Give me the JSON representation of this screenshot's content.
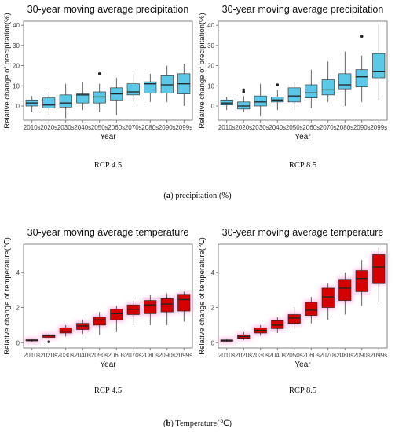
{
  "captions": {
    "a_letter": "a",
    "a_text": "precipitation (%)",
    "b_letter": "b",
    "b_text": "Temperature(℃)"
  },
  "colors": {
    "precip_fill": "#5bc8e8",
    "temp_fill": "#d40000",
    "temp_halo": "#ff9ad8",
    "line": "#222222",
    "frame": "#666666"
  },
  "chart_data": [
    {
      "type": "boxplot",
      "title": "30-year moving average precipitation",
      "subtitle": "RCP 4.5",
      "xlabel": "Year",
      "ylabel": "Relative change of precipitation(%)",
      "categories": [
        "2010s",
        "2020s",
        "2030s",
        "2040s",
        "2050s",
        "2060s",
        "2070s",
        "2080s",
        "2090s",
        "2099s"
      ],
      "ylim": [
        -7,
        42
      ],
      "yticks": [
        0,
        10,
        20,
        30,
        40
      ],
      "grid": false,
      "fill": "precip",
      "boxes": [
        {
          "min": -3,
          "q1": 0,
          "median": 1.5,
          "q3": 3,
          "max": 5,
          "outliers": []
        },
        {
          "min": -4.5,
          "q1": -1,
          "median": 0.5,
          "q3": 4,
          "max": 7,
          "outliers": []
        },
        {
          "min": -6,
          "q1": -0.5,
          "median": 1.5,
          "q3": 5.5,
          "max": 11,
          "outliers": []
        },
        {
          "min": -2,
          "q1": 1.5,
          "median": 5.5,
          "q3": 6,
          "max": 12,
          "outliers": []
        },
        {
          "min": -3,
          "q1": 1.5,
          "median": 4.5,
          "q3": 7,
          "max": 11,
          "outliers": [
            16
          ]
        },
        {
          "min": -4.5,
          "q1": 3,
          "median": 6,
          "q3": 9,
          "max": 14,
          "outliers": []
        },
        {
          "min": 2,
          "q1": 5.5,
          "median": 7,
          "q3": 11,
          "max": 16,
          "outliers": []
        },
        {
          "min": 2,
          "q1": 6.5,
          "median": 11,
          "q3": 12,
          "max": 16,
          "outliers": []
        },
        {
          "min": 2,
          "q1": 6.5,
          "median": 10.5,
          "q3": 15,
          "max": 20,
          "outliers": []
        },
        {
          "min": 0,
          "q1": 6,
          "median": 11,
          "q3": 16,
          "max": 21,
          "outliers": []
        }
      ]
    },
    {
      "type": "boxplot",
      "title": "30-year moving average precipitation",
      "subtitle": "RCP 8.5",
      "xlabel": "Year",
      "ylabel": "Relative change of precipitation(%)",
      "categories": [
        "2010s",
        "2020s",
        "2030s",
        "2040s",
        "2050s",
        "2060s",
        "2070s",
        "2080s",
        "2090s",
        "2099s"
      ],
      "ylim": [
        -7,
        42
      ],
      "yticks": [
        0,
        10,
        20,
        30,
        40
      ],
      "grid": false,
      "fill": "precip",
      "boxes": [
        {
          "min": -2,
          "q1": 0.5,
          "median": 1.5,
          "q3": 3,
          "max": 4.5,
          "outliers": []
        },
        {
          "min": -3,
          "q1": -1.5,
          "median": 0,
          "q3": 2,
          "max": 5,
          "outliers": [
            7,
            8
          ]
        },
        {
          "min": -5,
          "q1": 0,
          "median": 2,
          "q3": 5,
          "max": 11,
          "outliers": []
        },
        {
          "min": -2,
          "q1": 2,
          "median": 3,
          "q3": 4.5,
          "max": 8,
          "outliers": [
            10.5
          ]
        },
        {
          "min": -2,
          "q1": 2,
          "median": 5,
          "q3": 9,
          "max": 12,
          "outliers": []
        },
        {
          "min": -1,
          "q1": 4,
          "median": 6.5,
          "q3": 10.5,
          "max": 18,
          "outliers": []
        },
        {
          "min": 2,
          "q1": 5.5,
          "median": 8,
          "q3": 13,
          "max": 22,
          "outliers": []
        },
        {
          "min": 0,
          "q1": 8.5,
          "median": 10.5,
          "q3": 16,
          "max": 27,
          "outliers": []
        },
        {
          "min": 2,
          "q1": 9.5,
          "median": 14.5,
          "q3": 18,
          "max": 25,
          "outliers": [
            34.5
          ]
        },
        {
          "min": 3,
          "q1": 14,
          "median": 17,
          "q3": 26,
          "max": 41,
          "outliers": []
        }
      ]
    },
    {
      "type": "boxplot",
      "title": "30-year moving average temperature",
      "subtitle": "RCP 4.5",
      "xlabel": "Year",
      "ylabel": "Relative change of temperature(℃)",
      "categories": [
        "2010s",
        "2020s",
        "2030s",
        "2040s",
        "2050s",
        "2060s",
        "2070s",
        "2080s",
        "2090s",
        "2099s"
      ],
      "ylim": [
        -0.3,
        5.6
      ],
      "yticks": [
        0,
        2,
        4
      ],
      "grid": false,
      "fill": "temp",
      "boxes": [
        {
          "min": 0.05,
          "q1": 0.1,
          "median": 0.13,
          "q3": 0.17,
          "max": 0.2,
          "outliers": []
        },
        {
          "min": 0.2,
          "q1": 0.3,
          "median": 0.4,
          "q3": 0.45,
          "max": 0.55,
          "outliers": [
            0.05
          ]
        },
        {
          "min": 0.35,
          "q1": 0.55,
          "median": 0.65,
          "q3": 0.85,
          "max": 1.0,
          "outliers": []
        },
        {
          "min": 0.5,
          "q1": 0.75,
          "median": 0.95,
          "q3": 1.1,
          "max": 1.3,
          "outliers": []
        },
        {
          "min": 0.45,
          "q1": 1.0,
          "median": 1.3,
          "q3": 1.45,
          "max": 1.75,
          "outliers": []
        },
        {
          "min": 0.6,
          "q1": 1.3,
          "median": 1.65,
          "q3": 1.9,
          "max": 2.1,
          "outliers": []
        },
        {
          "min": 1.0,
          "q1": 1.6,
          "median": 1.9,
          "q3": 2.15,
          "max": 2.4,
          "outliers": []
        },
        {
          "min": 1.0,
          "q1": 1.65,
          "median": 2.15,
          "q3": 2.4,
          "max": 2.7,
          "outliers": []
        },
        {
          "min": 1.0,
          "q1": 1.75,
          "median": 2.2,
          "q3": 2.5,
          "max": 2.8,
          "outliers": []
        },
        {
          "min": 1.2,
          "q1": 1.8,
          "median": 2.45,
          "q3": 2.75,
          "max": 2.9,
          "outliers": []
        }
      ]
    },
    {
      "type": "boxplot",
      "title": "30-year moving average temperature",
      "subtitle": "RCP 8.5",
      "xlabel": "Year",
      "ylabel": "Relative change of temperature(℃)",
      "categories": [
        "2010s",
        "2020s",
        "2030s",
        "2040s",
        "2050s",
        "2060s",
        "2070s",
        "2080s",
        "2090s",
        "2099s"
      ],
      "ylim": [
        -0.3,
        5.6
      ],
      "yticks": [
        0,
        2,
        4
      ],
      "grid": false,
      "fill": "temp",
      "boxes": [
        {
          "min": 0.05,
          "q1": 0.08,
          "median": 0.12,
          "q3": 0.16,
          "max": 0.2,
          "outliers": []
        },
        {
          "min": 0.15,
          "q1": 0.25,
          "median": 0.35,
          "q3": 0.45,
          "max": 0.6,
          "outliers": []
        },
        {
          "min": 0.4,
          "q1": 0.55,
          "median": 0.7,
          "q3": 0.85,
          "max": 1.0,
          "outliers": []
        },
        {
          "min": 0.55,
          "q1": 0.8,
          "median": 1.0,
          "q3": 1.25,
          "max": 1.45,
          "outliers": []
        },
        {
          "min": 0.75,
          "q1": 1.1,
          "median": 1.4,
          "q3": 1.6,
          "max": 2.0,
          "outliers": []
        },
        {
          "min": 1.1,
          "q1": 1.55,
          "median": 1.85,
          "q3": 2.3,
          "max": 2.6,
          "outliers": []
        },
        {
          "min": 1.3,
          "q1": 2.0,
          "median": 2.6,
          "q3": 3.1,
          "max": 3.4,
          "outliers": []
        },
        {
          "min": 1.6,
          "q1": 2.4,
          "median": 3.1,
          "q3": 3.6,
          "max": 4.0,
          "outliers": []
        },
        {
          "min": 2.1,
          "q1": 2.9,
          "median": 3.65,
          "q3": 4.1,
          "max": 4.7,
          "outliers": []
        },
        {
          "min": 2.3,
          "q1": 3.4,
          "median": 4.3,
          "q3": 5.0,
          "max": 5.4,
          "outliers": []
        }
      ]
    }
  ]
}
